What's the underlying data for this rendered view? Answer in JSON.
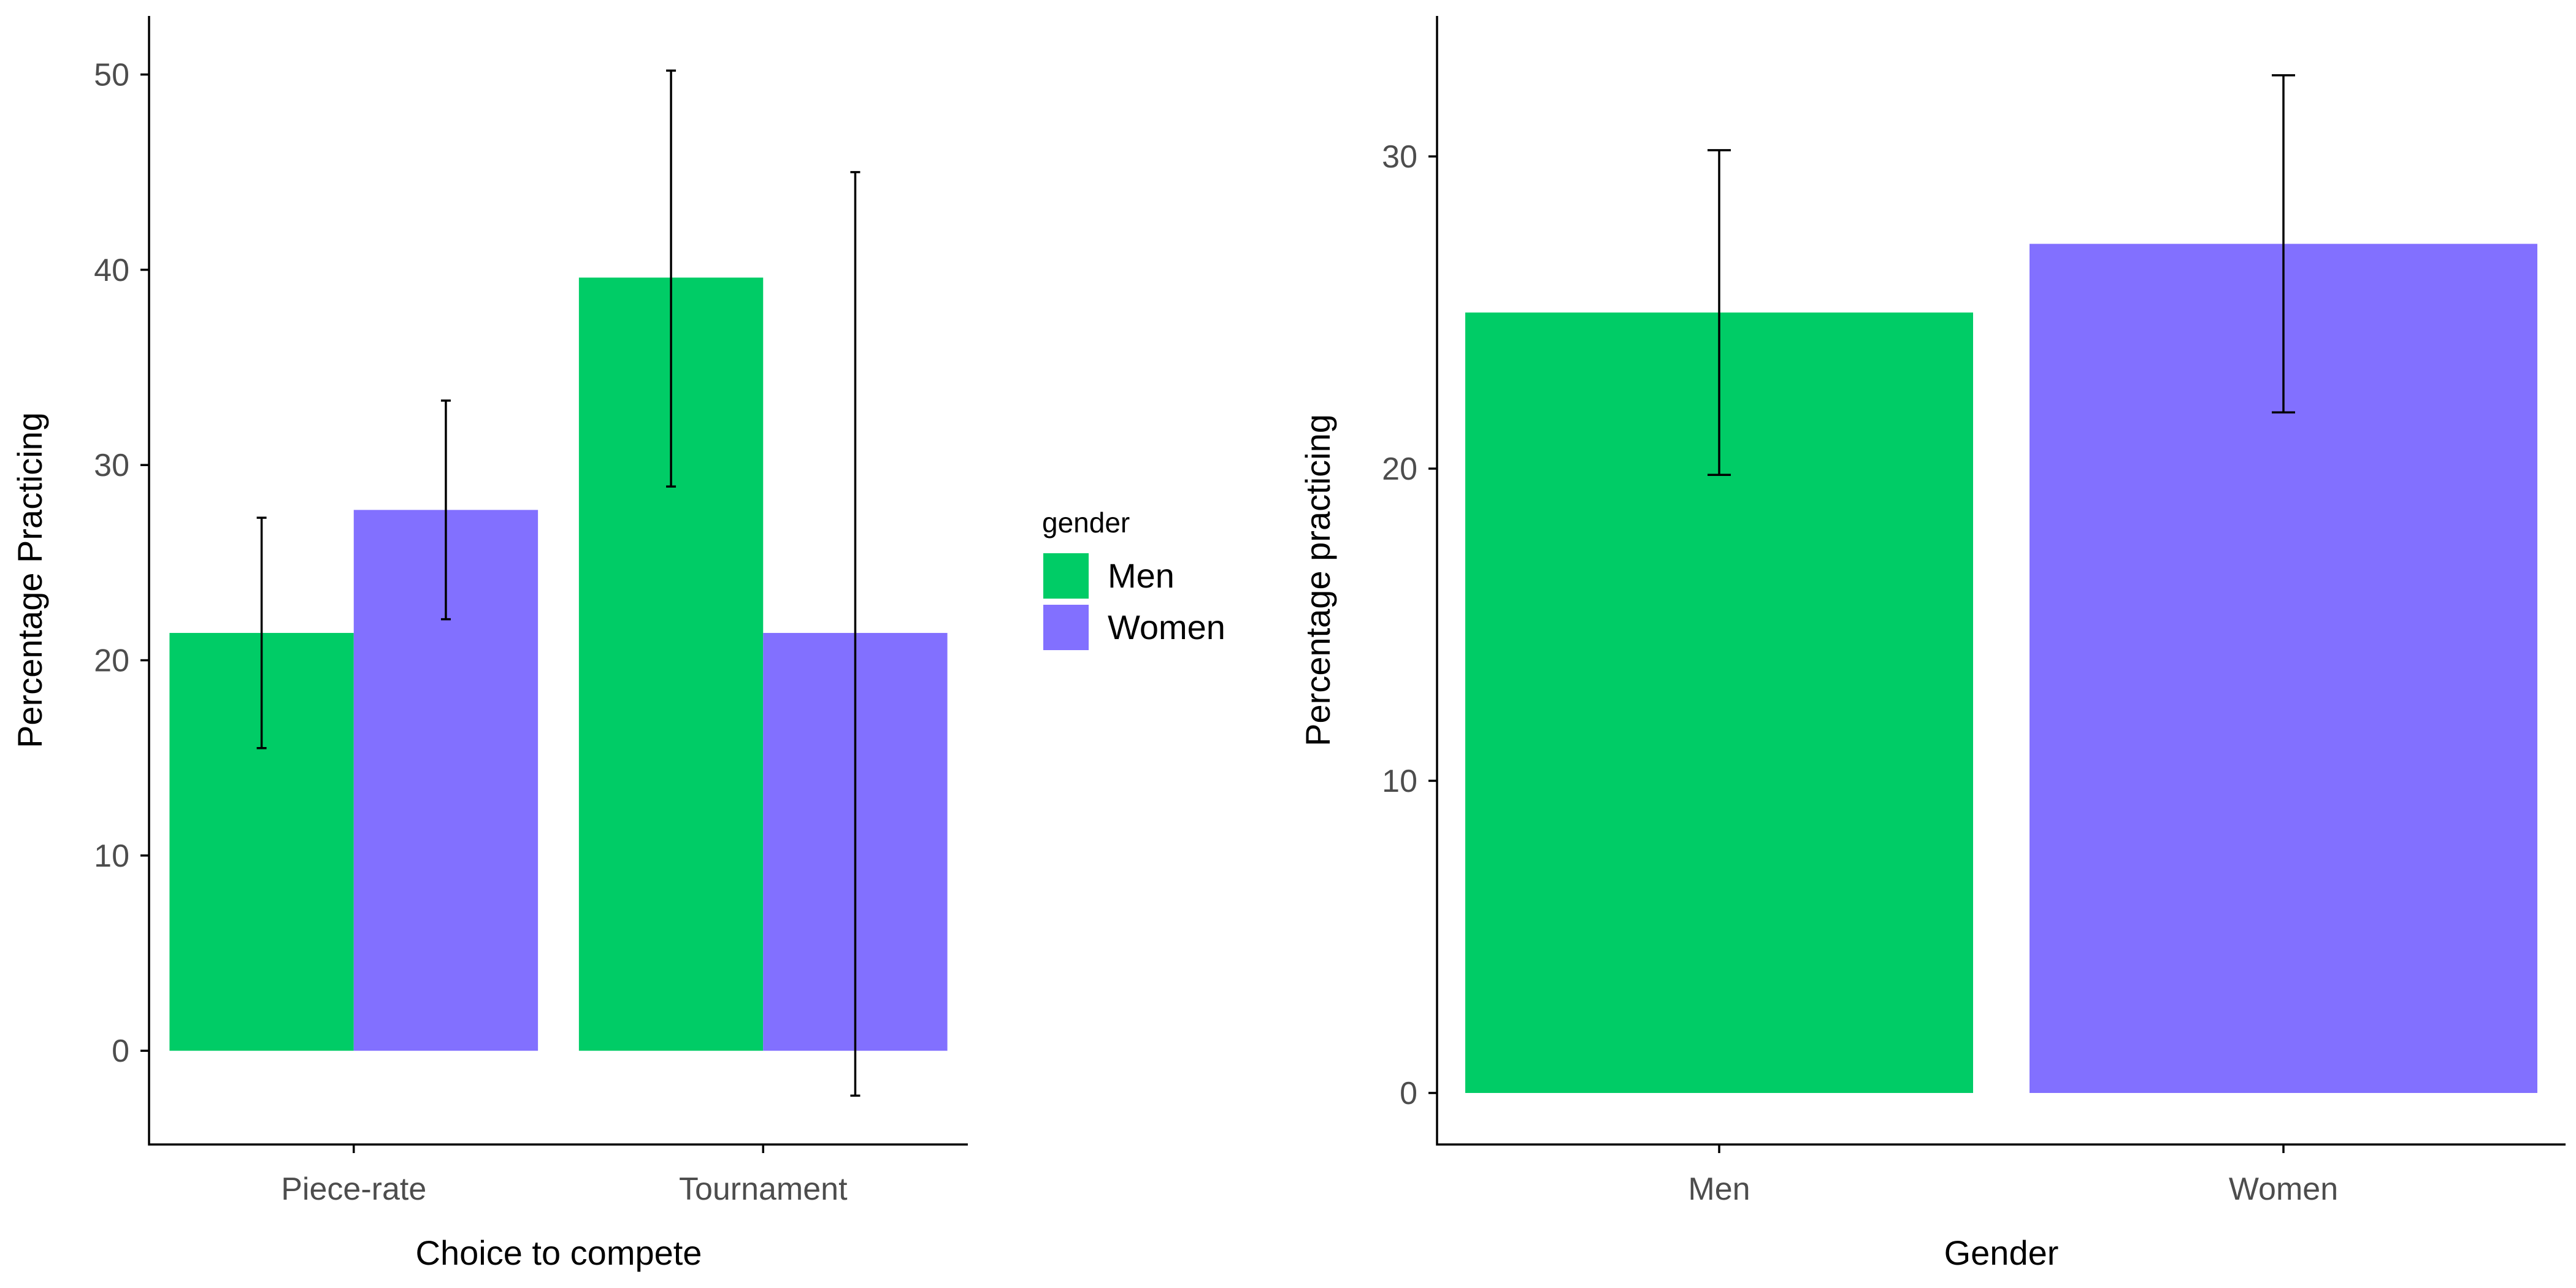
{
  "chart_data": [
    {
      "type": "bar",
      "title": "",
      "xlabel": "Choice to compete",
      "ylabel": "Percentage Practicing",
      "categories": [
        "Piece-rate",
        "Tournament"
      ],
      "series": [
        {
          "name": "Men",
          "color": "#00CC66",
          "values": [
            21.4,
            39.6
          ],
          "error_low": [
            15.5,
            28.9
          ],
          "error_high": [
            27.3,
            50.2
          ]
        },
        {
          "name": "Women",
          "color": "#8270FF",
          "values": [
            27.7,
            21.4
          ],
          "error_low": [
            22.1,
            -2.3
          ],
          "error_high": [
            33.3,
            45.0
          ]
        }
      ],
      "ylim": [
        -4.8,
        53
      ],
      "yticks": [
        0,
        10,
        20,
        30,
        40,
        50
      ],
      "grid": false,
      "legend": {
        "title": "gender",
        "position": "right",
        "entries": [
          "Men",
          "Women"
        ]
      }
    },
    {
      "type": "bar",
      "title": "",
      "xlabel": "Gender",
      "ylabel": "Percentage practicing",
      "categories": [
        "Men",
        "Women"
      ],
      "values": [
        25.0,
        27.2
      ],
      "colors": [
        "#00CC66",
        "#8270FF"
      ],
      "error_low": [
        19.8,
        21.8
      ],
      "error_high": [
        30.2,
        32.6
      ],
      "ylim": [
        -1.65,
        34.5
      ],
      "yticks": [
        0,
        10,
        20,
        30
      ],
      "grid": false
    }
  ]
}
